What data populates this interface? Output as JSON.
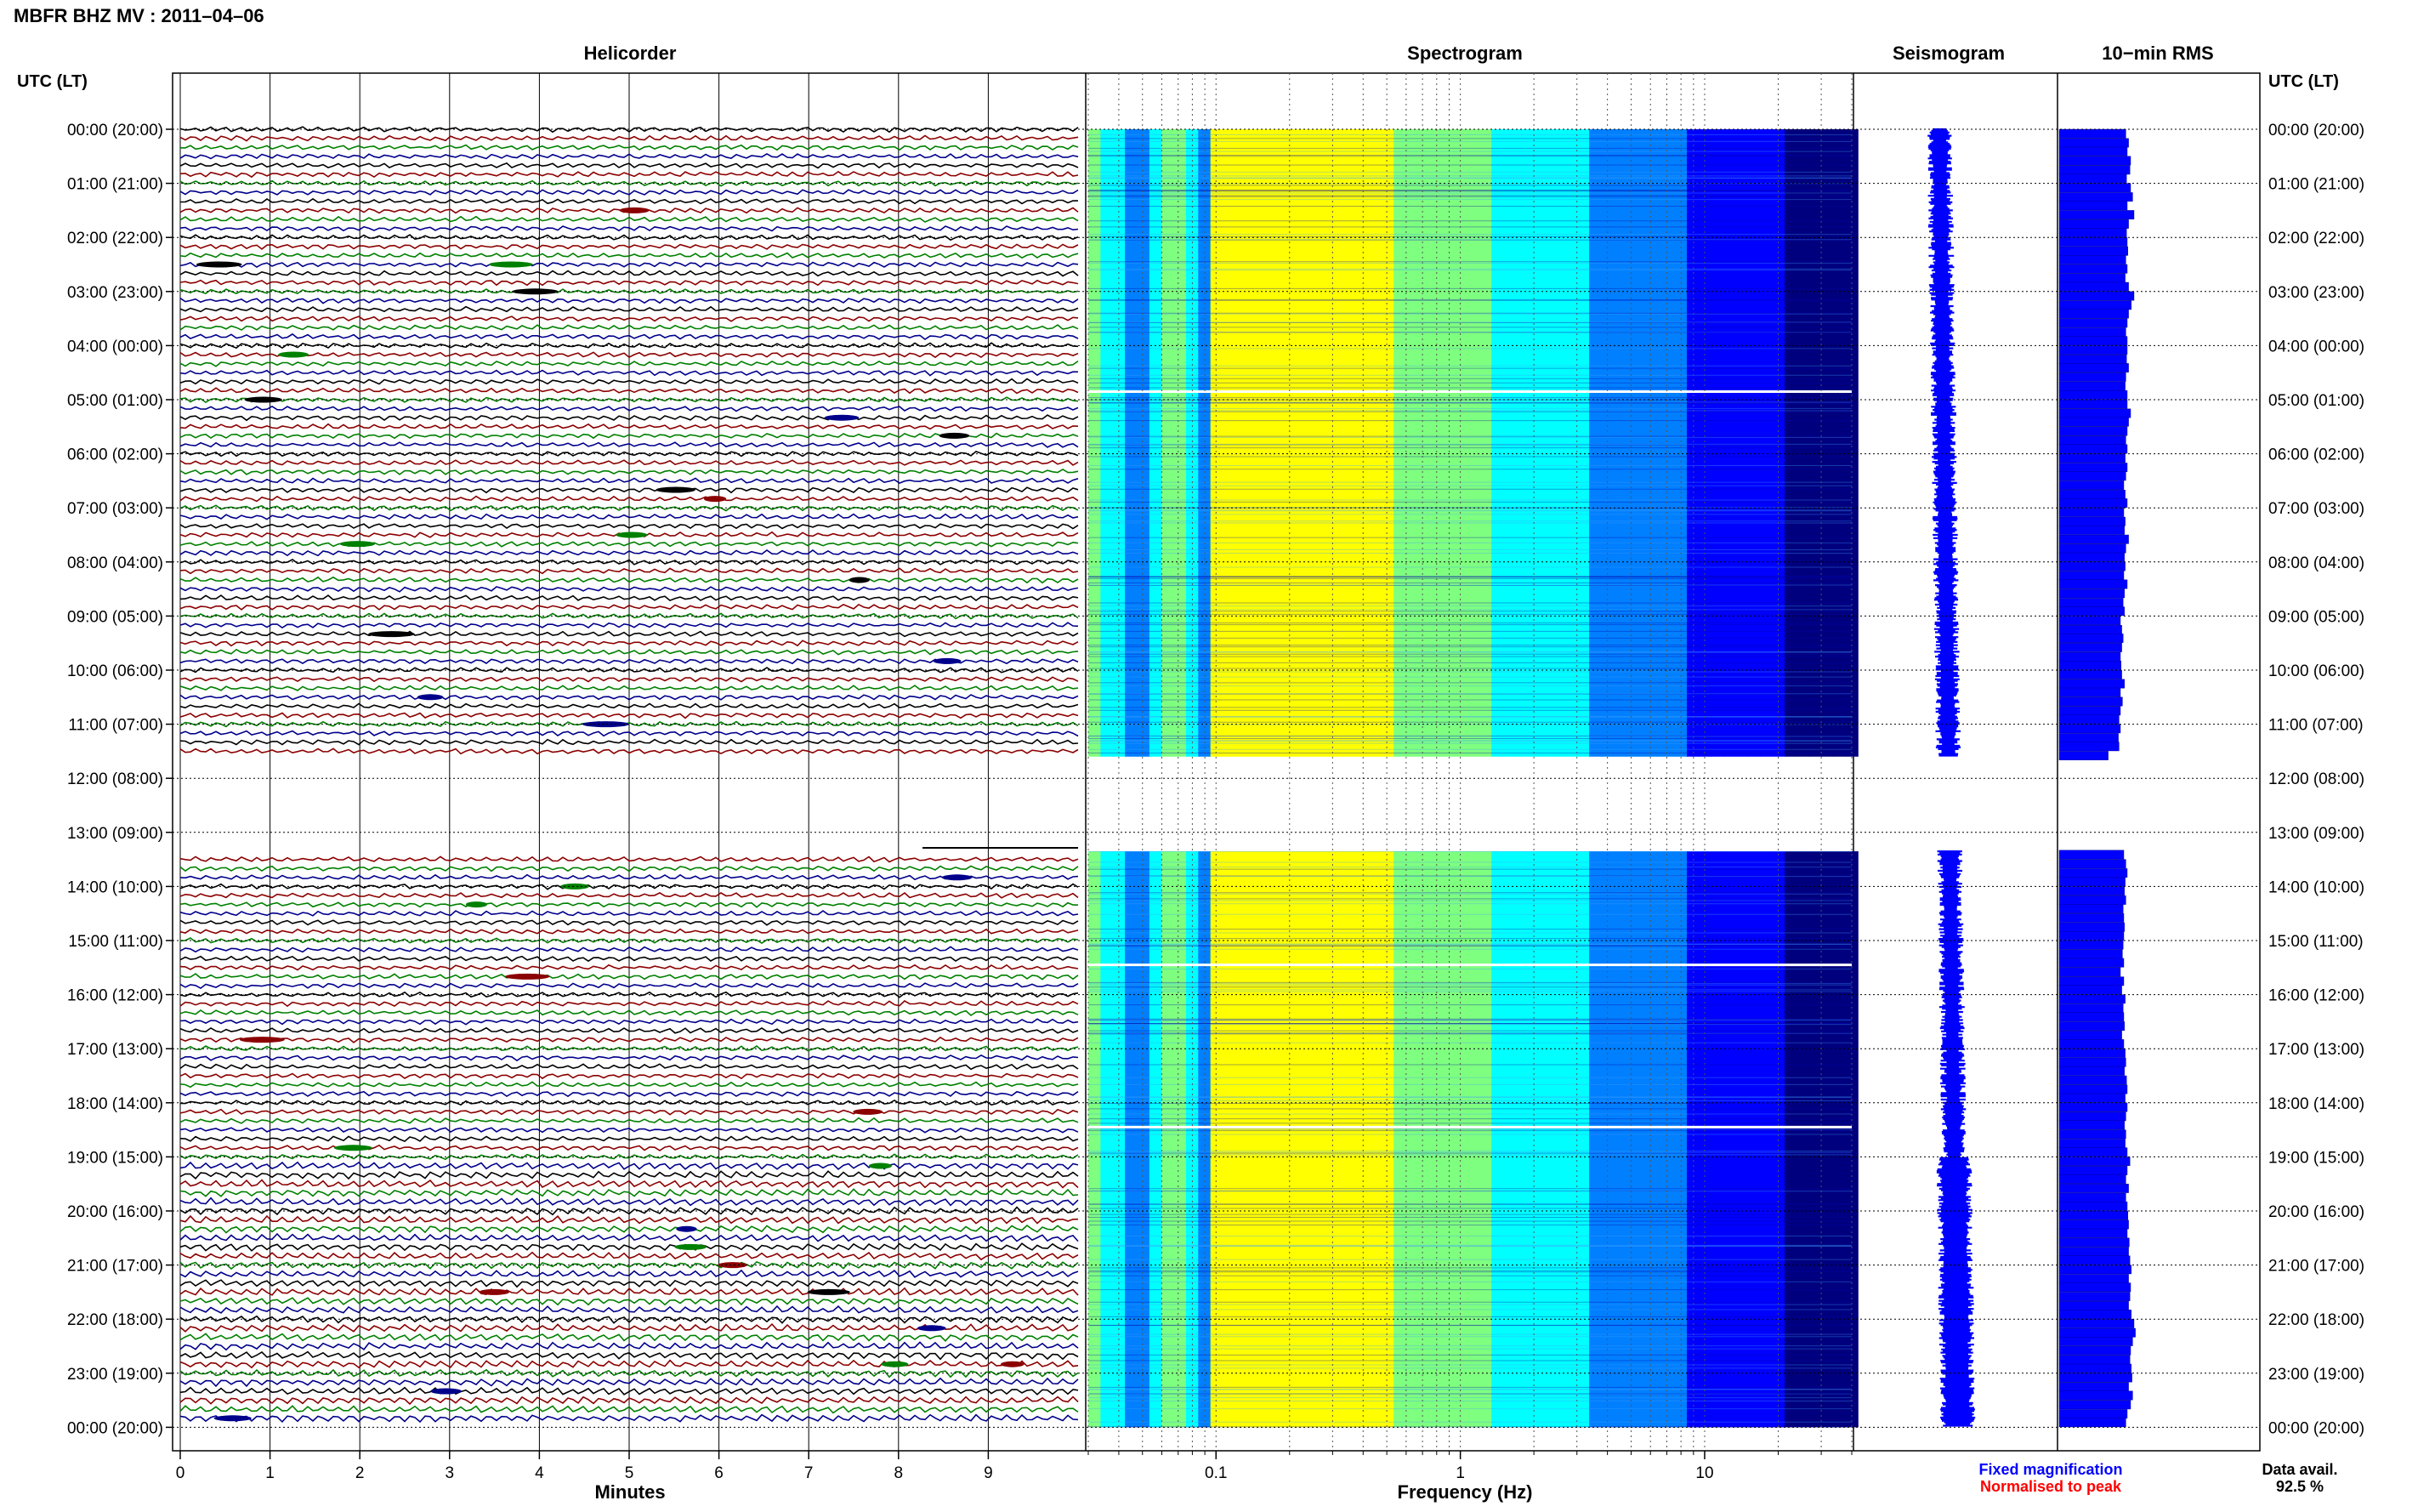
{
  "title": "MBFR BHZ MV : 2011–04–06",
  "time_axis_label": "UTC (LT)",
  "hour_labels": [
    "00:00 (20:00)",
    "01:00 (21:00)",
    "02:00 (22:00)",
    "03:00 (23:00)",
    "04:00 (00:00)",
    "05:00 (01:00)",
    "06:00 (02:00)",
    "07:00 (03:00)",
    "08:00 (04:00)",
    "09:00 (05:00)",
    "10:00 (06:00)",
    "11:00 (07:00)",
    "12:00 (08:00)",
    "13:00 (09:00)",
    "14:00 (10:00)",
    "15:00 (11:00)",
    "16:00 (12:00)",
    "17:00 (13:00)",
    "18:00 (14:00)",
    "19:00 (15:00)",
    "20:00 (16:00)",
    "21:00 (17:00)",
    "22:00 (18:00)",
    "23:00 (19:00)",
    "00:00 (20:00)"
  ],
  "panels": {
    "helicorder": {
      "title": "Helicorder",
      "xlabel": "Minutes",
      "xticks": [
        "0",
        "1",
        "2",
        "3",
        "4",
        "5",
        "6",
        "7",
        "8",
        "9"
      ],
      "trace_colors": [
        "#000000",
        "#8b0000",
        "#008000",
        "#00008b"
      ]
    },
    "spectrogram": {
      "title": "Spectrogram",
      "xlabel": "Frequency (Hz)",
      "xticks": [
        "0.1",
        "1",
        "10"
      ],
      "xscale": "log",
      "xlim": [
        0.03,
        40
      ],
      "colormap": [
        "#00007f",
        "#0000ff",
        "#007fff",
        "#00ffff",
        "#7fff7f",
        "#ffff00"
      ]
    },
    "seismogram": {
      "title": "Seismogram",
      "legend": [
        "Fixed magnification",
        "Normalised to peak"
      ],
      "legend_colors": [
        "#0000ff",
        "#ff0000"
      ]
    },
    "rms": {
      "title": "10−min RMS",
      "bar_color": "#0000ff"
    }
  },
  "data_availability": {
    "label": "Data avail.",
    "value": "92.5 %"
  },
  "chart_data": {
    "type": "heatmap",
    "title": "MBFR BHZ MV : 2011–04–06",
    "y_unit": "hours UTC",
    "ylim": [
      0,
      24
    ],
    "data_gaps_hours": [
      [
        11.6,
        13.35
      ]
    ],
    "data_available_percent": 92.5,
    "spectrogram_peak_frequency_hz": 0.22,
    "rms_10min": {
      "x_label": "hour UTC",
      "hours": [
        0.0,
        0.17,
        0.33,
        0.5,
        0.67,
        0.83,
        1.0,
        1.17,
        1.33,
        1.5,
        1.67,
        1.83,
        2.0,
        2.17,
        2.33,
        2.5,
        2.67,
        2.83,
        3.0,
        3.17,
        3.33,
        3.5,
        3.67,
        3.83,
        4.0,
        4.17,
        4.33,
        4.5,
        4.67,
        4.83,
        5.0,
        5.17,
        5.33,
        5.5,
        5.67,
        5.83,
        6.0,
        6.17,
        6.33,
        6.5,
        6.67,
        6.83,
        7.0,
        7.17,
        7.33,
        7.5,
        7.67,
        7.83,
        8.0,
        8.17,
        8.33,
        8.5,
        8.67,
        8.83,
        9.0,
        9.17,
        9.33,
        9.5,
        9.67,
        9.83,
        10.0,
        10.17,
        10.33,
        10.5,
        10.67,
        10.83,
        11.0,
        11.17,
        11.33,
        11.5,
        13.33,
        13.5,
        13.67,
        13.83,
        14.0,
        14.17,
        14.33,
        14.5,
        14.67,
        14.83,
        15.0,
        15.17,
        15.33,
        15.5,
        15.67,
        15.83,
        16.0,
        16.17,
        16.33,
        16.5,
        16.67,
        16.83,
        17.0,
        17.17,
        17.33,
        17.5,
        17.67,
        17.83,
        18.0,
        18.17,
        18.33,
        18.5,
        18.67,
        18.83,
        19.0,
        19.17,
        19.33,
        19.5,
        19.67,
        19.83,
        20.0,
        20.17,
        20.33,
        20.5,
        20.67,
        20.83,
        21.0,
        21.17,
        21.33,
        21.5,
        21.67,
        21.83,
        22.0,
        22.17,
        22.33,
        22.5,
        22.67,
        22.83,
        23.0,
        23.17,
        23.33,
        23.5,
        23.67,
        23.83
      ],
      "values": [
        0.98,
        1.02,
        1.0,
        1.05,
        1.04,
        0.99,
        1.05,
        1.08,
        1.0,
        1.1,
        1.02,
        0.99,
        1.0,
        1.01,
        0.98,
        1.0,
        0.97,
        1.02,
        1.1,
        1.06,
        1.02,
        1.0,
        0.98,
        1.0,
        1.0,
        0.99,
        1.02,
        0.98,
        0.97,
        1.0,
        1.0,
        1.05,
        1.02,
        1.0,
        0.98,
        1.0,
        0.97,
        1.0,
        0.98,
        0.95,
        0.97,
        1.0,
        0.95,
        0.97,
        0.96,
        1.02,
        0.98,
        0.96,
        0.97,
        0.95,
        1.0,
        0.96,
        0.94,
        0.96,
        0.9,
        0.92,
        0.94,
        0.92,
        0.9,
        0.91,
        0.92,
        0.96,
        0.9,
        0.93,
        0.9,
        0.88,
        0.9,
        0.87,
        0.88,
        0.72,
        0.95,
        0.98,
        1.0,
        0.97,
        0.96,
        0.98,
        0.94,
        0.95,
        0.96,
        0.95,
        0.94,
        0.93,
        0.95,
        0.9,
        0.95,
        0.92,
        0.97,
        0.94,
        0.95,
        0.96,
        0.92,
        0.95,
        0.97,
        0.98,
        0.96,
        0.99,
        1.0,
        0.97,
        1.0,
        0.98,
        0.96,
        0.98,
        0.97,
        1.0,
        1.04,
        1.0,
        0.98,
        1.02,
        0.98,
        1.0,
        1.01,
        1.02,
        1.0,
        1.03,
        1.02,
        1.04,
        1.06,
        1.02,
        1.05,
        1.04,
        1.02,
        1.06,
        1.1,
        1.12,
        1.08,
        1.05,
        1.04,
        1.06,
        1.07,
        1.02,
        1.08,
        1.05,
        1.0,
        0.98
      ]
    }
  }
}
